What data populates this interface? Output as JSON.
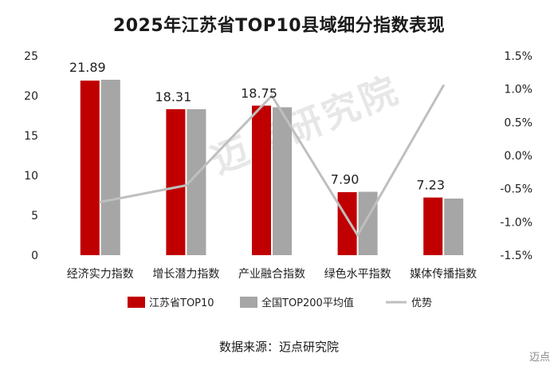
{
  "title": "2025年江苏省TOP10县域细分指数表现",
  "source": "数据来源：迈点研究院",
  "watermark": "迈点研究院",
  "corner_logo": "迈点",
  "colors": {
    "top10": "#c00000",
    "top200": "#a6a6a6",
    "advantage": "#bfbfbf"
  },
  "chart_data": {
    "type": "bar",
    "categories": [
      "经济实力指数",
      "增长潜力指数",
      "产业融合指数",
      "绿色水平指数",
      "媒体传播指数"
    ],
    "series": [
      {
        "name": "江苏省TOP10",
        "type": "bar",
        "axis": "left",
        "values": [
          21.89,
          18.31,
          18.75,
          7.9,
          7.23
        ],
        "labels": [
          "21.89",
          "18.31",
          "18.75",
          "7.90",
          "7.23"
        ]
      },
      {
        "name": "全国TOP200平均值",
        "type": "bar",
        "axis": "left",
        "values": [
          22.0,
          18.3,
          18.55,
          7.95,
          7.1
        ]
      },
      {
        "name": "优势",
        "type": "line",
        "axis": "right",
        "values": [
          -0.7,
          -0.45,
          0.9,
          -1.2,
          1.05
        ]
      }
    ],
    "y_left": {
      "min": 0,
      "max": 25,
      "ticks": [
        "0",
        "5",
        "10",
        "15",
        "20",
        "25"
      ]
    },
    "y_right": {
      "min": -1.5,
      "max": 1.5,
      "ticks": [
        "-1.5%",
        "-1.0%",
        "-0.5%",
        "0.0%",
        "0.5%",
        "1.0%",
        "1.5%"
      ]
    },
    "legend_position": "bottom",
    "grid": false
  }
}
